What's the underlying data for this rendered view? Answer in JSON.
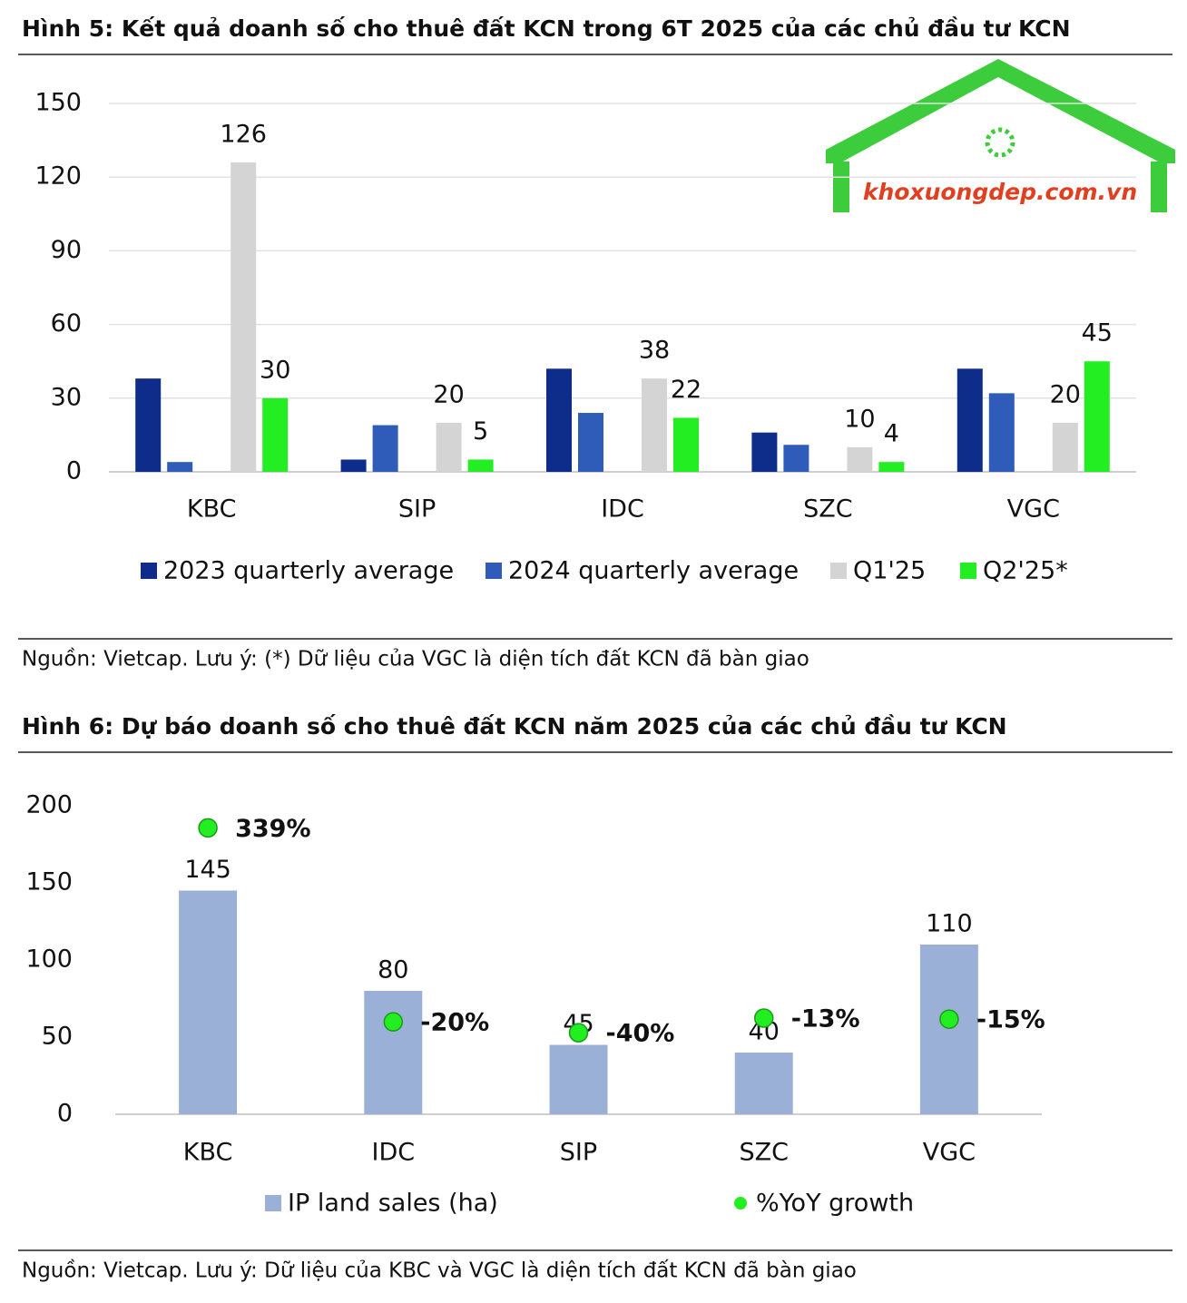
{
  "watermark": "khoxuongdep.com.vn",
  "chart_data": [
    {
      "type": "bar",
      "title": "Hình 5: Kết quả doanh số cho thuê đất KCN trong 6T 2025 của các chủ đầu tư KCN",
      "source": "Nguồn: Vietcap. Lưu ý: (*) Dữ liệu của VGC là diện tích đất KCN đã bàn giao",
      "categories": [
        "KBC",
        "SIP",
        "IDC",
        "SZC",
        "VGC"
      ],
      "series": [
        {
          "name": "2023 quarterly average",
          "color": "#0e2d8a",
          "values": [
            38,
            5,
            42,
            16,
            42
          ]
        },
        {
          "name": "2024 quarterly average",
          "color": "#2f5cb9",
          "values": [
            4,
            19,
            24,
            11,
            32
          ]
        },
        {
          "name": "Q1'25",
          "color": "#d4d4d4",
          "values": [
            126,
            20,
            38,
            10,
            20
          ],
          "show_labels": true
        },
        {
          "name": "Q2'25*",
          "color": "#22ee22",
          "values": [
            30,
            5,
            22,
            4,
            45
          ],
          "show_labels": true
        }
      ],
      "ylim": [
        0,
        150
      ],
      "yticks": [
        0,
        30,
        60,
        90,
        120,
        150
      ],
      "grid": true
    },
    {
      "type": "bar_dot",
      "title": "Hình 6: Dự báo doanh số cho thuê đất KCN năm 2025 của các chủ đầu tư KCN",
      "source": "Nguồn: Vietcap. Lưu ý: Dữ liệu của KBC và VGC là diện tích đất KCN đã bàn giao",
      "categories": [
        "KBC",
        "IDC",
        "SIP",
        "SZC",
        "VGC"
      ],
      "series": [
        {
          "name": "IP land sales (ha)",
          "color": "#9bb0d6",
          "values": [
            145,
            80,
            45,
            40,
            110
          ]
        },
        {
          "name": "%YoY growth",
          "color": "#22ee22",
          "axis": "y2",
          "values": [
            339,
            -20,
            -40,
            -13,
            -15
          ],
          "value_labels": [
            "339%",
            "-20%",
            "-40%",
            "-13%",
            "-15%"
          ]
        }
      ],
      "ylim": [
        0,
        200
      ],
      "yticks": [
        0,
        50,
        100,
        150,
        200
      ],
      "y2lim": [
        -191,
        380
      ],
      "grid": false
    }
  ]
}
